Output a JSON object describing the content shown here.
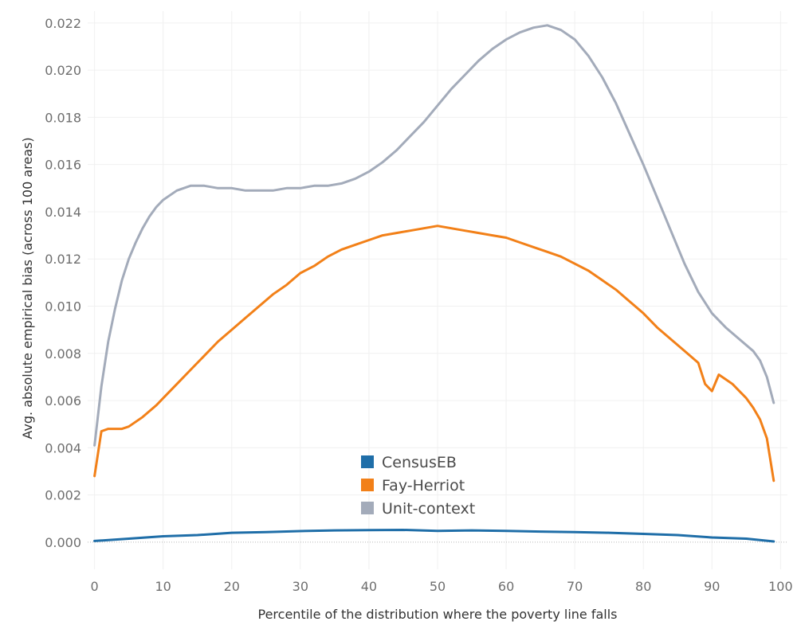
{
  "chart_data": {
    "type": "line",
    "xlabel": "Percentile of the distribution where the poverty line falls",
    "ylabel": "Avg. absolute empirical bias (across 100 areas)",
    "xlim": [
      -1,
      101
    ],
    "ylim": [
      -0.00115,
      0.0225
    ],
    "x_ticks": [
      "0",
      "10",
      "20",
      "30",
      "40",
      "50",
      "60",
      "70",
      "80",
      "90",
      "100"
    ],
    "y_ticks": [
      "0.000",
      "0.002",
      "0.004",
      "0.006",
      "0.008",
      "0.010",
      "0.012",
      "0.014",
      "0.016",
      "0.018",
      "0.020",
      "0.022"
    ],
    "grid": true,
    "legend_position": "bottom-center",
    "series": [
      {
        "name": "CensusEB",
        "color": "#1f6ea8",
        "points": [
          [
            0,
            5e-05
          ],
          [
            5,
            0.00015
          ],
          [
            10,
            0.00025
          ],
          [
            15,
            0.0003
          ],
          [
            20,
            0.0004
          ],
          [
            25,
            0.00043
          ],
          [
            30,
            0.00047
          ],
          [
            35,
            0.0005
          ],
          [
            40,
            0.00051
          ],
          [
            45,
            0.00052
          ],
          [
            50,
            0.00048
          ],
          [
            55,
            0.0005
          ],
          [
            60,
            0.00048
          ],
          [
            65,
            0.00045
          ],
          [
            70,
            0.00043
          ],
          [
            75,
            0.0004
          ],
          [
            80,
            0.00035
          ],
          [
            85,
            0.0003
          ],
          [
            90,
            0.0002
          ],
          [
            95,
            0.00015
          ],
          [
            99,
            3e-05
          ]
        ]
      },
      {
        "name": "Fay-Herriot",
        "color": "#f28018",
        "points": [
          [
            0,
            0.0028
          ],
          [
            1,
            0.0047
          ],
          [
            2,
            0.0048
          ],
          [
            3,
            0.0048
          ],
          [
            4,
            0.0048
          ],
          [
            5,
            0.0049
          ],
          [
            7,
            0.0053
          ],
          [
            9,
            0.0058
          ],
          [
            10,
            0.0061
          ],
          [
            12,
            0.0067
          ],
          [
            14,
            0.0073
          ],
          [
            16,
            0.0079
          ],
          [
            18,
            0.0085
          ],
          [
            20,
            0.009
          ],
          [
            22,
            0.0095
          ],
          [
            24,
            0.01
          ],
          [
            26,
            0.0105
          ],
          [
            28,
            0.0109
          ],
          [
            30,
            0.0114
          ],
          [
            32,
            0.0117
          ],
          [
            34,
            0.0121
          ],
          [
            36,
            0.0124
          ],
          [
            38,
            0.0126
          ],
          [
            40,
            0.0128
          ],
          [
            42,
            0.013
          ],
          [
            44,
            0.0131
          ],
          [
            46,
            0.0132
          ],
          [
            48,
            0.0133
          ],
          [
            50,
            0.0134
          ],
          [
            52,
            0.0133
          ],
          [
            54,
            0.0132
          ],
          [
            56,
            0.0131
          ],
          [
            58,
            0.013
          ],
          [
            60,
            0.0129
          ],
          [
            62,
            0.0127
          ],
          [
            64,
            0.0125
          ],
          [
            66,
            0.0123
          ],
          [
            68,
            0.0121
          ],
          [
            70,
            0.0118
          ],
          [
            72,
            0.0115
          ],
          [
            74,
            0.0111
          ],
          [
            76,
            0.0107
          ],
          [
            78,
            0.0102
          ],
          [
            80,
            0.0097
          ],
          [
            82,
            0.0091
          ],
          [
            84,
            0.0086
          ],
          [
            86,
            0.0081
          ],
          [
            88,
            0.0076
          ],
          [
            89,
            0.0067
          ],
          [
            90,
            0.0064
          ],
          [
            91,
            0.0071
          ],
          [
            92,
            0.0069
          ],
          [
            93,
            0.0067
          ],
          [
            94,
            0.0064
          ],
          [
            95,
            0.0061
          ],
          [
            96,
            0.0057
          ],
          [
            97,
            0.0052
          ],
          [
            98,
            0.0044
          ],
          [
            99,
            0.0026
          ]
        ]
      },
      {
        "name": "Unit-context",
        "color": "#a3abba",
        "points": [
          [
            0,
            0.0041
          ],
          [
            1,
            0.0066
          ],
          [
            2,
            0.0085
          ],
          [
            3,
            0.0099
          ],
          [
            4,
            0.0111
          ],
          [
            5,
            0.012
          ],
          [
            6,
            0.0127
          ],
          [
            7,
            0.0133
          ],
          [
            8,
            0.0138
          ],
          [
            9,
            0.0142
          ],
          [
            10,
            0.0145
          ],
          [
            11,
            0.0147
          ],
          [
            12,
            0.0149
          ],
          [
            13,
            0.015
          ],
          [
            14,
            0.0151
          ],
          [
            16,
            0.0151
          ],
          [
            18,
            0.015
          ],
          [
            20,
            0.015
          ],
          [
            22,
            0.0149
          ],
          [
            24,
            0.0149
          ],
          [
            26,
            0.0149
          ],
          [
            28,
            0.015
          ],
          [
            30,
            0.015
          ],
          [
            32,
            0.0151
          ],
          [
            34,
            0.0151
          ],
          [
            36,
            0.0152
          ],
          [
            38,
            0.0154
          ],
          [
            40,
            0.0157
          ],
          [
            42,
            0.0161
          ],
          [
            44,
            0.0166
          ],
          [
            46,
            0.0172
          ],
          [
            48,
            0.0178
          ],
          [
            50,
            0.0185
          ],
          [
            52,
            0.0192
          ],
          [
            54,
            0.0198
          ],
          [
            56,
            0.0204
          ],
          [
            58,
            0.0209
          ],
          [
            60,
            0.0213
          ],
          [
            62,
            0.0216
          ],
          [
            64,
            0.0218
          ],
          [
            66,
            0.0219
          ],
          [
            68,
            0.0217
          ],
          [
            70,
            0.0213
          ],
          [
            72,
            0.0206
          ],
          [
            74,
            0.0197
          ],
          [
            76,
            0.0186
          ],
          [
            78,
            0.0173
          ],
          [
            80,
            0.016
          ],
          [
            82,
            0.0146
          ],
          [
            84,
            0.0132
          ],
          [
            86,
            0.0118
          ],
          [
            88,
            0.0106
          ],
          [
            90,
            0.0097
          ],
          [
            92,
            0.0091
          ],
          [
            94,
            0.0086
          ],
          [
            96,
            0.0081
          ],
          [
            97,
            0.0077
          ],
          [
            98,
            0.007
          ],
          [
            99,
            0.0059
          ]
        ]
      }
    ]
  }
}
